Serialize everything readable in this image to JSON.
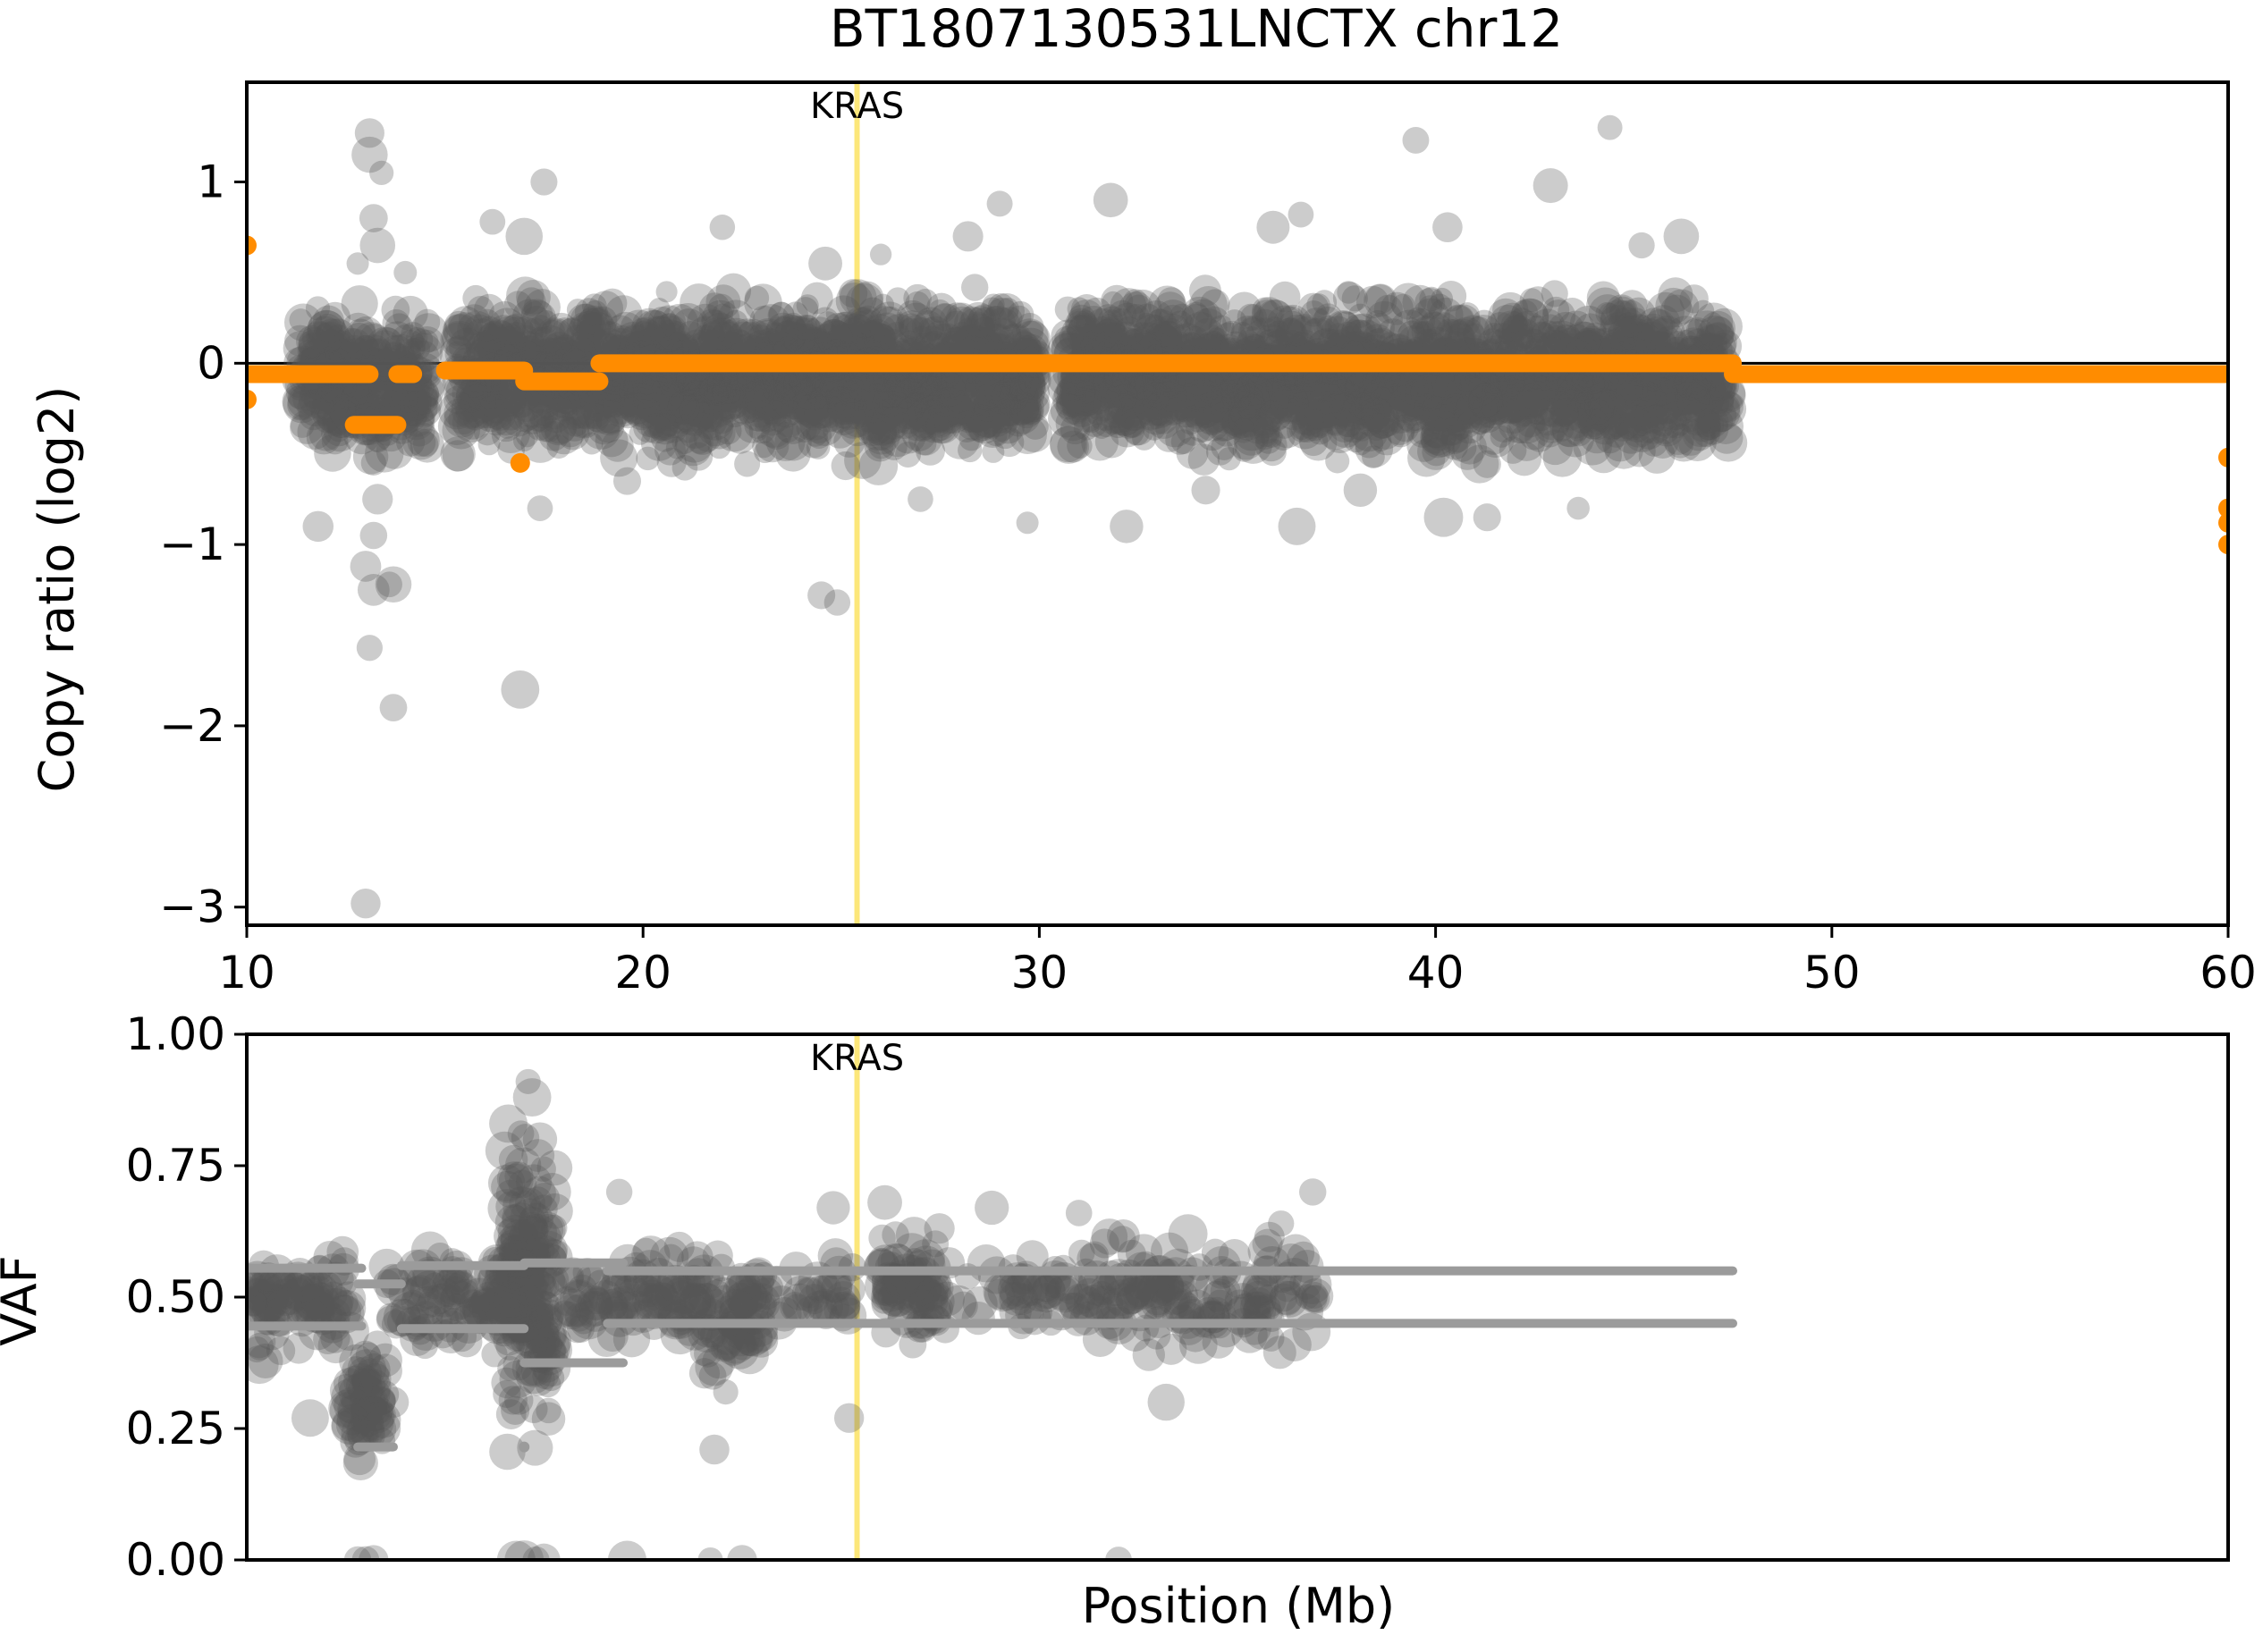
{
  "colors": {
    "points": "#555555",
    "segments_cnr": "#ff8c00",
    "segments_vaf": "#9b9b9b",
    "gene_highlight": "#fce77a",
    "baseline": "#000000"
  },
  "chart_data": [
    {
      "type": "scatter",
      "panel": "copy-ratio",
      "title": "BT1807130531LNCTX chr12",
      "xlabel": "",
      "ylabel": "Copy ratio (log2)",
      "xlim": [
        10,
        60
      ],
      "ylim": [
        -3.1,
        1.55
      ],
      "xticks": [
        10,
        20,
        30,
        40,
        50,
        60
      ],
      "yticks": [
        -3,
        -2,
        -1,
        0,
        1
      ],
      "ytick_labels": [
        "−3",
        "−2",
        "−1",
        "0",
        "1"
      ],
      "baseline_y": 0,
      "gene": {
        "name": "KRAS",
        "position": 25.4
      },
      "clusters": [
        {
          "x": [
            11.3,
            14.6
          ],
          "y": [
            -0.65,
            0.45
          ],
          "n": 340
        },
        {
          "x": [
            15.3,
            19.0
          ],
          "y": [
            -0.6,
            0.5
          ],
          "n": 420
        },
        {
          "x": [
            19.0,
            29.9
          ],
          "y": [
            -0.6,
            0.45
          ],
          "n": 1500
        },
        {
          "x": [
            30.6,
            47.4
          ],
          "y": [
            -0.6,
            0.45
          ],
          "n": 2100
        }
      ],
      "points": [
        [
          13.1,
          1.27
        ],
        [
          13.1,
          1.15
        ],
        [
          13.4,
          1.05
        ],
        [
          13.2,
          0.8
        ],
        [
          13.3,
          0.65
        ],
        [
          12.8,
          0.55
        ],
        [
          17.5,
          1.0
        ],
        [
          17.0,
          0.7
        ],
        [
          14.0,
          0.5
        ],
        [
          13.0,
          -0.35
        ],
        [
          13.2,
          -0.55
        ],
        [
          13.3,
          -0.75
        ],
        [
          13.2,
          -0.95
        ],
        [
          13.0,
          -1.12
        ],
        [
          13.2,
          -1.25
        ],
        [
          13.6,
          -1.22
        ],
        [
          13.7,
          -1.22
        ],
        [
          13.1,
          -1.57
        ],
        [
          13.7,
          -1.9
        ],
        [
          13.0,
          -2.98
        ],
        [
          16.9,
          -1.8
        ],
        [
          11.8,
          -0.9
        ],
        [
          24.5,
          -1.28
        ],
        [
          24.9,
          -1.32
        ],
        [
          17.4,
          -0.8
        ],
        [
          29.7,
          -0.88
        ],
        [
          22.0,
          0.75
        ],
        [
          29.0,
          0.88
        ],
        [
          31.8,
          0.9
        ],
        [
          35.9,
          0.75
        ],
        [
          36.6,
          0.82
        ],
        [
          39.5,
          1.23
        ],
        [
          40.3,
          0.75
        ],
        [
          42.9,
          0.98
        ],
        [
          44.4,
          1.3
        ],
        [
          46.2,
          0.7
        ],
        [
          45.2,
          0.65
        ],
        [
          32.2,
          -0.9
        ],
        [
          36.5,
          -0.9
        ],
        [
          40.2,
          -0.85
        ],
        [
          41.3,
          -0.85
        ],
        [
          43.6,
          -0.8
        ],
        [
          34.2,
          -0.7
        ],
        [
          24.6,
          0.55
        ],
        [
          28.2,
          0.7
        ],
        [
          16.2,
          0.78
        ],
        [
          19.6,
          -0.65
        ],
        [
          27.0,
          -0.75
        ],
        [
          38.1,
          -0.7
        ],
        [
          26.0,
          0.6
        ]
      ],
      "segments": [
        {
          "x": [
            10.0,
            13.1
          ],
          "y": -0.06
        },
        {
          "x": [
            12.7,
            13.8
          ],
          "y": -0.34
        },
        {
          "x": [
            13.8,
            14.2
          ],
          "y": -0.06
        },
        {
          "x": [
            15.0,
            17.0
          ],
          "y": -0.04
        },
        {
          "x": [
            17.0,
            18.9
          ],
          "y": -0.1
        },
        {
          "x": [
            18.9,
            47.5
          ],
          "y": 0.0
        },
        {
          "x": [
            47.5,
            60.0
          ],
          "y": -0.06
        }
      ],
      "segment_points": [
        [
          10.0,
          0.65
        ],
        [
          10.0,
          -0.2
        ],
        [
          16.9,
          -0.55
        ],
        [
          60.0,
          -0.52
        ],
        [
          60.0,
          -0.8
        ],
        [
          60.0,
          -0.88
        ],
        [
          60.0,
          -1.0
        ]
      ]
    },
    {
      "type": "scatter",
      "panel": "vaf",
      "title": "",
      "xlabel": "Position (Mb)",
      "ylabel": "VAF",
      "xlim": [
        10,
        60
      ],
      "ylim": [
        0,
        1
      ],
      "yticks": [
        0,
        0.25,
        0.5,
        0.75,
        1.0
      ],
      "ytick_labels": [
        "0.00",
        "0.25",
        "0.50",
        "0.75",
        "1.00"
      ],
      "gene": {
        "name": "KRAS",
        "position": 25.4
      },
      "clusters": [
        {
          "x": [
            10.1,
            12.6
          ],
          "y": [
            0.36,
            0.62
          ],
          "n": 110
        },
        {
          "x": [
            12.5,
            13.5
          ],
          "y": [
            0.15,
            0.45
          ],
          "n": 70
        },
        {
          "x": [
            13.5,
            15.0
          ],
          "y": [
            0.38,
            0.6
          ],
          "n": 40
        },
        {
          "x": [
            15.0,
            16.5
          ],
          "y": [
            0.38,
            0.6
          ],
          "n": 60
        },
        {
          "x": [
            16.5,
            17.8
          ],
          "y": [
            0.15,
            0.9
          ],
          "n": 200
        },
        {
          "x": [
            18.0,
            19.8
          ],
          "y": [
            0.38,
            0.62
          ],
          "n": 50
        },
        {
          "x": [
            19.8,
            21.5
          ],
          "y": [
            0.38,
            0.62
          ],
          "n": 60
        },
        {
          "x": [
            21.5,
            23.0
          ],
          "y": [
            0.3,
            0.62
          ],
          "n": 80
        },
        {
          "x": [
            23.0,
            25.3
          ],
          "y": [
            0.4,
            0.6
          ],
          "n": 40
        },
        {
          "x": [
            26.0,
            27.5
          ],
          "y": [
            0.38,
            0.65
          ],
          "n": 80
        },
        {
          "x": [
            27.5,
            31.0
          ],
          "y": [
            0.4,
            0.6
          ],
          "n": 50
        },
        {
          "x": [
            31.0,
            37.0
          ],
          "y": [
            0.36,
            0.64
          ],
          "n": 170
        }
      ],
      "points": [
        [
          12.8,
          0.0
        ],
        [
          13.0,
          0.0
        ],
        [
          13.2,
          0.0
        ],
        [
          16.8,
          0.0
        ],
        [
          17.0,
          0.0
        ],
        [
          17.3,
          0.0
        ],
        [
          17.5,
          0.0
        ],
        [
          19.6,
          0.0
        ],
        [
          21.7,
          0.0
        ],
        [
          22.5,
          0.0
        ],
        [
          32.0,
          0.0
        ],
        [
          26.1,
          0.68
        ],
        [
          28.8,
          0.67
        ],
        [
          19.4,
          0.7
        ],
        [
          36.9,
          0.7
        ],
        [
          16.6,
          0.83
        ],
        [
          17.1,
          0.91
        ],
        [
          17.2,
          0.88
        ],
        [
          17.4,
          0.8
        ],
        [
          11.6,
          0.27
        ],
        [
          21.8,
          0.21
        ],
        [
          25.2,
          0.27
        ],
        [
          33.2,
          0.3
        ],
        [
          24.8,
          0.67
        ],
        [
          31.0,
          0.66
        ],
        [
          32.1,
          0.61
        ],
        [
          36.1,
          0.64
        ],
        [
          34.6,
          0.56
        ],
        [
          29.6,
          0.53
        ],
        [
          13.7,
          0.3
        ]
      ],
      "segments": [
        {
          "x": [
            10.0,
            12.9
          ],
          "y": 0.555
        },
        {
          "x": [
            10.0,
            12.9
          ],
          "y": 0.445
        },
        {
          "x": [
            12.8,
            13.9
          ],
          "y": 0.525
        },
        {
          "x": [
            12.8,
            13.7
          ],
          "y": 0.215
        },
        {
          "x": [
            13.9,
            17.0
          ],
          "y": 0.56
        },
        {
          "x": [
            13.9,
            17.0
          ],
          "y": 0.44
        },
        {
          "x": [
            17.0,
            19.5
          ],
          "y": 0.565
        },
        {
          "x": [
            17.0,
            19.5
          ],
          "y": 0.375
        },
        {
          "x": [
            19.1,
            47.5
          ],
          "y": 0.55
        },
        {
          "x": [
            19.1,
            47.5
          ],
          "y": 0.45
        }
      ],
      "segment_points": [
        [
          17.0,
          0.215
        ]
      ]
    }
  ]
}
